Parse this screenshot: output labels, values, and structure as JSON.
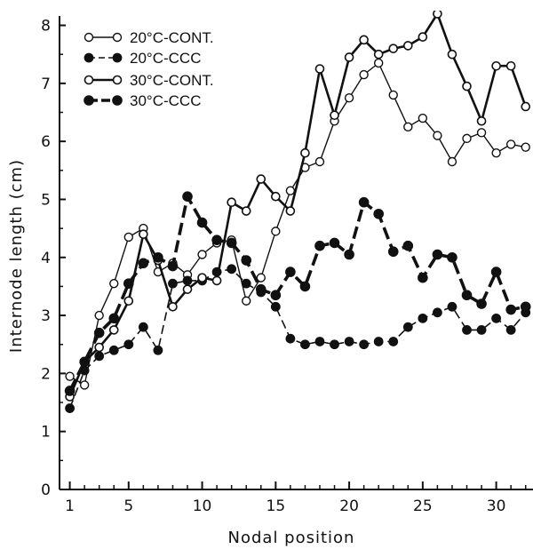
{
  "chart_data": {
    "type": "line",
    "xlabel": "Nodal position",
    "ylabel": "Internode length (cm)",
    "xlim": [
      0.3,
      32.5
    ],
    "ylim": [
      0,
      8.1
    ],
    "x_ticks": [
      1,
      5,
      10,
      15,
      20,
      25,
      30
    ],
    "y_ticks": [
      0,
      1,
      2,
      3,
      4,
      5,
      6,
      7,
      8
    ],
    "grid": false,
    "legend_position": "top-left",
    "series": [
      {
        "name": "20°C-CONT.",
        "style": "open-thin",
        "x": [
          1,
          2,
          3,
          4,
          5,
          6,
          7,
          8,
          9,
          10,
          11,
          12,
          13,
          14,
          15,
          16,
          17,
          18,
          19,
          20,
          21,
          22,
          23,
          24,
          25,
          26,
          27,
          28,
          29,
          30,
          31,
          32
        ],
        "values": [
          1.95,
          1.8,
          3.0,
          3.55,
          4.35,
          4.5,
          3.75,
          3.9,
          3.7,
          4.05,
          4.25,
          4.3,
          3.25,
          3.65,
          4.45,
          5.15,
          5.55,
          5.65,
          6.35,
          6.75,
          7.15,
          7.35,
          6.8,
          6.25,
          6.4,
          6.1,
          5.65,
          6.05,
          6.15,
          5.8,
          5.95,
          5.9
        ]
      },
      {
        "name": "20°C-CCC",
        "style": "filled-thin",
        "x": [
          1,
          2,
          3,
          4,
          5,
          6,
          7,
          8,
          9,
          10,
          11,
          12,
          13,
          14,
          15,
          16,
          17,
          18,
          19,
          20,
          21,
          22,
          23,
          24,
          25,
          26,
          27,
          28,
          29,
          30,
          31,
          32
        ],
        "values": [
          1.4,
          2.05,
          2.3,
          2.4,
          2.5,
          2.8,
          2.4,
          3.55,
          3.6,
          3.6,
          3.75,
          3.8,
          3.55,
          3.4,
          3.15,
          2.6,
          2.5,
          2.55,
          2.5,
          2.55,
          2.5,
          2.55,
          2.55,
          2.8,
          2.95,
          3.05,
          3.15,
          2.75,
          2.75,
          2.95,
          2.75,
          3.05
        ]
      },
      {
        "name": "30°C-CONT.",
        "style": "open-thick",
        "x": [
          1,
          2,
          3,
          4,
          5,
          6,
          7,
          8,
          9,
          10,
          11,
          12,
          13,
          14,
          15,
          16,
          17,
          18,
          19,
          20,
          21,
          22,
          23,
          24,
          25,
          26,
          27,
          28,
          29,
          30,
          31,
          32
        ],
        "values": [
          1.6,
          2.2,
          2.45,
          2.75,
          3.25,
          4.4,
          3.95,
          3.15,
          3.45,
          3.65,
          3.6,
          4.95,
          4.8,
          5.35,
          5.05,
          4.8,
          5.8,
          7.25,
          6.45,
          7.45,
          7.75,
          7.5,
          7.6,
          7.65,
          7.8,
          8.2,
          7.5,
          6.95,
          6.35,
          7.3,
          7.3,
          6.6
        ]
      },
      {
        "name": "30°C-CCC",
        "style": "filled-thick",
        "x": [
          1,
          2,
          3,
          4,
          5,
          6,
          7,
          8,
          9,
          10,
          11,
          12,
          13,
          14,
          15,
          16,
          17,
          18,
          19,
          20,
          21,
          22,
          23,
          24,
          25,
          26,
          27,
          28,
          29,
          30,
          31,
          32
        ],
        "values": [
          1.7,
          2.2,
          2.7,
          2.95,
          3.55,
          3.9,
          4.0,
          3.85,
          5.05,
          4.6,
          4.3,
          4.25,
          3.95,
          3.45,
          3.35,
          3.75,
          3.5,
          4.2,
          4.25,
          4.05,
          4.95,
          4.75,
          4.1,
          4.2,
          3.65,
          4.05,
          4.0,
          3.35,
          3.2,
          3.75,
          3.1,
          3.15
        ]
      }
    ]
  }
}
